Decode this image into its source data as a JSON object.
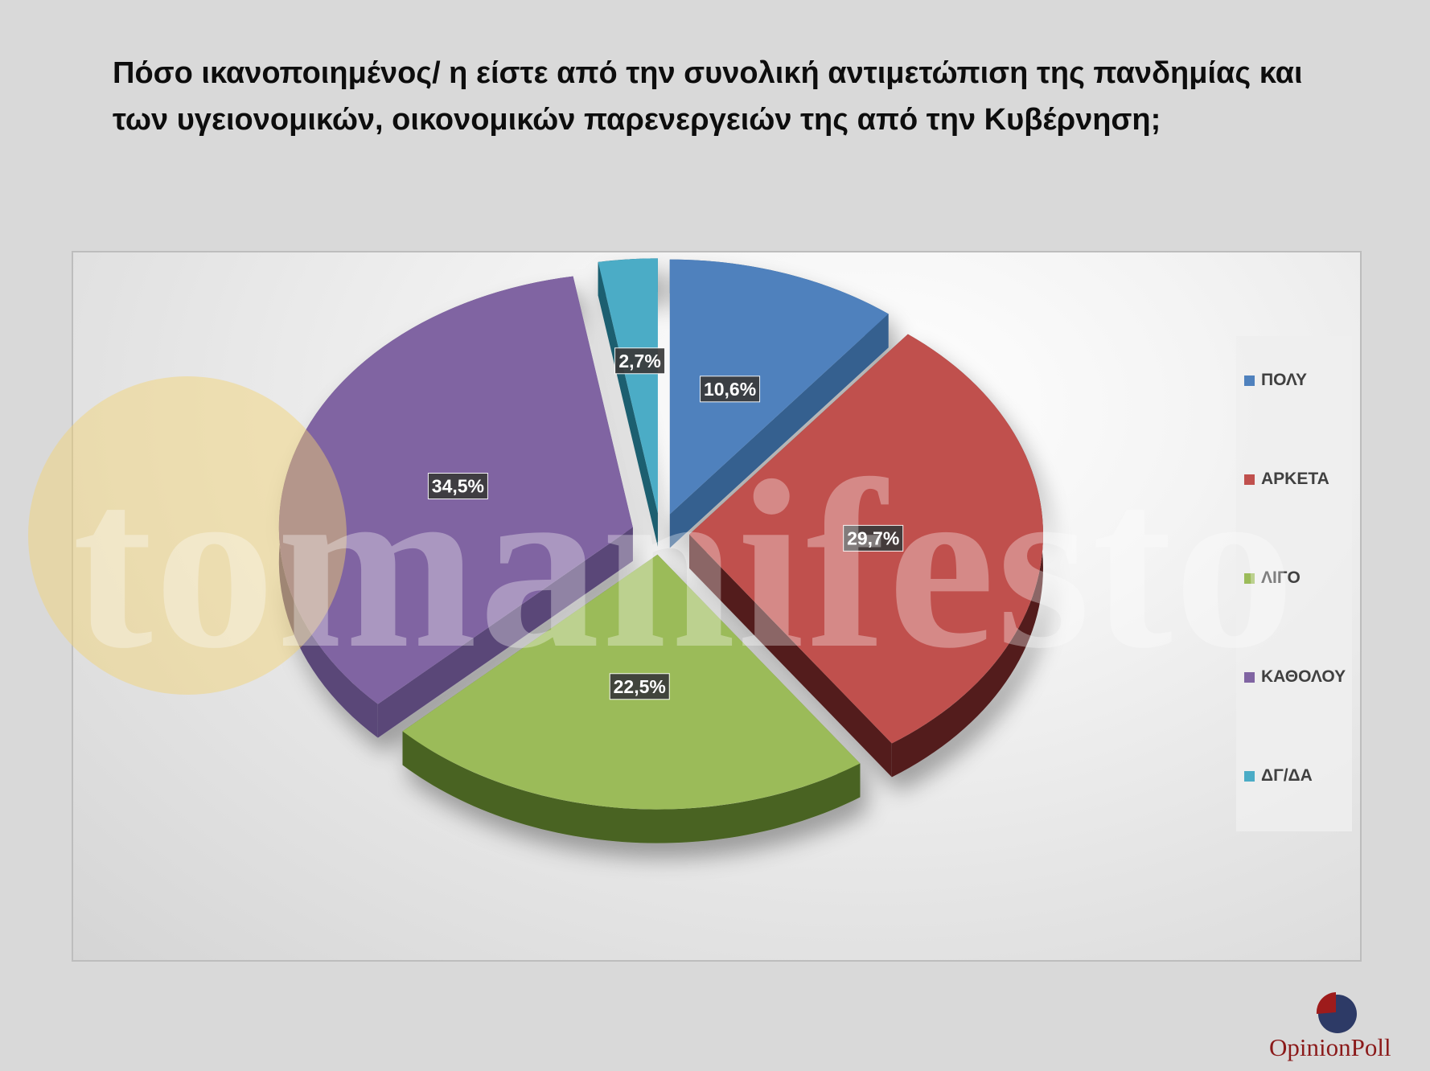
{
  "title": "Πόσο ικανοποιημένος/ η είστε από την συνολική αντιμετώπιση της πανδημίας και των υγειονομικών, οικονομικών παρενεργειών της από την Κυβέρνηση;",
  "chart_data": {
    "type": "pie",
    "title": "",
    "categories": [
      "ΠΟΛΥ",
      "ΑΡΚΕΤΑ",
      "ΛΙΓΟ",
      "ΚΑΘΟΛΟΥ",
      "ΔΓ/ΔΑ"
    ],
    "values": [
      10.6,
      29.7,
      22.5,
      34.5,
      2.7
    ],
    "value_labels": [
      "10,6%",
      "29,7%",
      "22,5%",
      "34,5%",
      "2,7%"
    ],
    "colors": [
      "#4f81bd",
      "#c0504d",
      "#9bbb59",
      "#8064a2",
      "#4bacc6"
    ],
    "side_colors": [
      "#35608f",
      "#521f1f",
      "#4a6424",
      "#5a4778",
      "#1f5f6f"
    ],
    "style": "3d-exploded",
    "legend_position": "right"
  },
  "watermark": {
    "text": "tomanifesto"
  },
  "logo": {
    "text": "OpinionPoll",
    "colors": [
      "#9e1b1b",
      "#2d3a66"
    ]
  }
}
